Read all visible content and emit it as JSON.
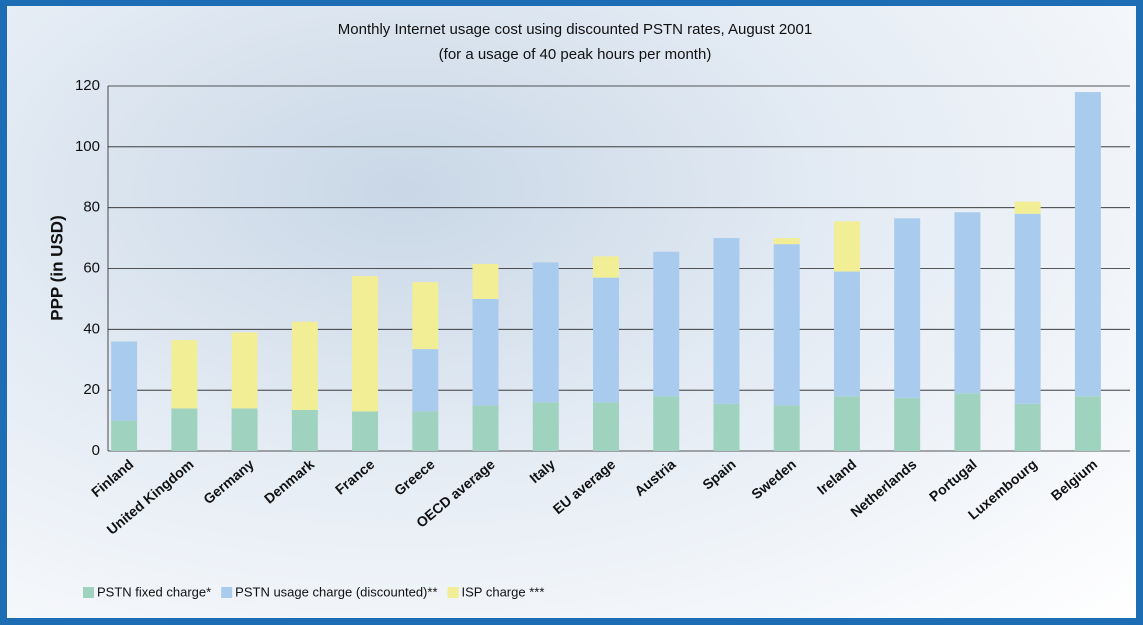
{
  "chart_data": {
    "type": "stacked-bar",
    "title": "Monthly Internet usage cost using discounted PSTN rates, August 2001",
    "subtitle": "(for a usage of 40 peak hours per month)",
    "y_label": "PPP (in USD)",
    "categories": [
      "Finland",
      "United Kingdom",
      "Germany",
      "Denmark",
      "France",
      "Greece",
      "OECD average",
      "Italy",
      "EU average",
      "Austria",
      "Spain",
      "Sweden",
      "Ireland",
      "Netherlands",
      "Portugal",
      "Luxembourg",
      "Belgium"
    ],
    "series": [
      {
        "name": "PSTN fixed charge*",
        "color": "#9fd3bf",
        "values": [
          10,
          14,
          14,
          13.5,
          13,
          13,
          15,
          16,
          16,
          18,
          15.5,
          15,
          18,
          17.5,
          19,
          15.5,
          18
        ]
      },
      {
        "name": "PSTN usage charge (discounted)**",
        "color": "#a9cbee",
        "values": [
          26,
          0,
          0,
          0,
          0,
          20.5,
          35,
          46,
          41,
          47.5,
          54.5,
          53,
          41,
          59,
          59.5,
          62.5,
          100
        ]
      },
      {
        "name": "ISP charge ***",
        "color": "#f2ee96",
        "values": [
          0,
          22.5,
          25,
          29,
          44.5,
          22,
          11.5,
          0,
          7,
          0,
          0,
          2,
          16.5,
          0,
          0,
          4,
          0
        ]
      }
    ],
    "ylim": [
      0,
      120
    ],
    "yticks": [
      0,
      20,
      40,
      60,
      80,
      100,
      120
    ],
    "grid": true
  }
}
